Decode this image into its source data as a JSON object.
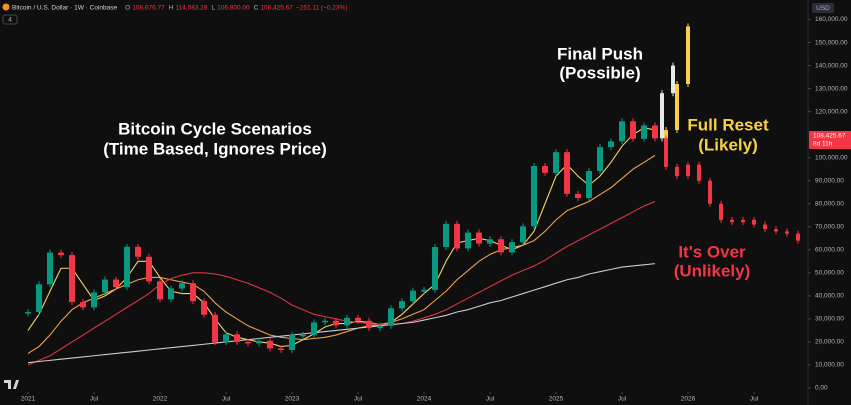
{
  "chart_data": {
    "type": "candlestick",
    "header": {
      "symbol": "Bitcoin / U.S. Dollar · 1W · Coinbase",
      "ohlc": [
        {
          "key": "O",
          "value": "108,676.77"
        },
        {
          "key": "H",
          "value": "114,083.28"
        },
        {
          "key": "L",
          "value": "106,800.00"
        },
        {
          "key": "C",
          "value": "108,425.67"
        }
      ],
      "change": "−251.11 (−0.23%)",
      "indicator_count": "4"
    },
    "currency": "USD",
    "last_price_label": "108,425.67",
    "countdown": "8d 11h",
    "title_annotation": [
      "Bitcoin Cycle Scenarios",
      "(Time Based, Ignores Price)"
    ],
    "x": [
      "2021-01",
      "2021-02",
      "2021-03",
      "2021-04",
      "2021-05",
      "2021-06",
      "2021-07",
      "2021-08",
      "2021-09",
      "2021-10",
      "2021-11",
      "2021-12",
      "2022-01",
      "2022-02",
      "2022-03",
      "2022-04",
      "2022-05",
      "2022-06",
      "2022-07",
      "2022-08",
      "2022-09",
      "2022-10",
      "2022-11",
      "2022-12",
      "2023-01",
      "2023-02",
      "2023-03",
      "2023-04",
      "2023-05",
      "2023-06",
      "2023-07",
      "2023-08",
      "2023-09",
      "2023-10",
      "2023-11",
      "2023-12",
      "2024-01",
      "2024-02",
      "2024-03",
      "2024-04",
      "2024-05",
      "2024-06",
      "2024-07",
      "2024-08",
      "2024-09",
      "2024-10",
      "2024-11",
      "2024-12",
      "2025-01",
      "2025-02",
      "2025-03",
      "2025-04",
      "2025-05",
      "2025-06",
      "2025-07",
      "2025-08",
      "2025-09",
      "2025-10"
    ],
    "series": [
      {
        "color": "#089981",
        "down_color": "#f23645",
        "values": [
          33000,
          45000,
          58800,
          57700,
          37300,
          35000,
          41500,
          47100,
          43800,
          61300,
          57000,
          46300,
          38500,
          43200,
          45500,
          37700,
          31800,
          19900,
          23300,
          20000,
          19400,
          20500,
          17200,
          16500,
          23100,
          23100,
          28500,
          29200,
          27200,
          30500,
          29200,
          26000,
          27000,
          34600,
          37700,
          42300,
          42600,
          61200,
          71300,
          60600,
          67500,
          62700,
          64600,
          58900,
          63300,
          70200,
          96400,
          93400,
          102400,
          84300,
          82500,
          94200,
          104600,
          107100,
          115800,
          108200,
          114000,
          108400
        ]
      }
    ],
    "moving_averages": [
      {
        "color": "#f5d36b",
        "values": [
          25000,
          32000,
          42000,
          52000,
          52000,
          45000,
          38000,
          40000,
          43000,
          48000,
          55000,
          55000,
          48000,
          42000,
          41000,
          41000,
          37000,
          30000,
          24000,
          22000,
          21000,
          20000,
          19500,
          18000,
          18500,
          21000,
          23500,
          26500,
          28000,
          28000,
          29000,
          28500,
          27500,
          28500,
          32000,
          36500,
          41000,
          45000,
          55000,
          63000,
          64000,
          65000,
          64000,
          62000,
          60000,
          62000,
          68000,
          80000,
          92000,
          97000,
          92000,
          88000,
          92000,
          98000,
          105000,
          110000,
          113000,
          112000
        ]
      },
      {
        "color": "#f0a050",
        "values": [
          15000,
          18000,
          23000,
          29000,
          34000,
          37000,
          39000,
          41000,
          43000,
          45000,
          47000,
          48000,
          48000,
          47000,
          46000,
          45000,
          42000,
          37000,
          33000,
          30000,
          27000,
          25000,
          23000,
          22000,
          21500,
          21000,
          21500,
          22000,
          23000,
          24500,
          26000,
          27000,
          27500,
          28500,
          30000,
          32000,
          34000,
          38000,
          42000,
          47000,
          51000,
          55000,
          58000,
          60000,
          61000,
          62000,
          64000,
          68000,
          73000,
          77000,
          79000,
          81000,
          84000,
          87000,
          91000,
          95000,
          98000,
          101000
        ]
      },
      {
        "color": "#d9363e",
        "values": [
          10000,
          12000,
          14000,
          17000,
          20000,
          23000,
          26000,
          29000,
          32000,
          35000,
          38000,
          41000,
          45000,
          47500,
          49000,
          50000,
          50000,
          49500,
          48500,
          47000,
          45500,
          43500,
          41500,
          39000,
          36000,
          34000,
          32000,
          31000,
          30000,
          29000,
          28500,
          28000,
          27500,
          27500,
          28000,
          29000,
          30500,
          32000,
          34000,
          36500,
          39000,
          41500,
          44000,
          46500,
          49000,
          51000,
          53000,
          55500,
          58500,
          61500,
          64000,
          66500,
          69000,
          71500,
          74000,
          76500,
          79000,
          81000
        ]
      },
      {
        "color": "#c8ccd4",
        "values": [
          11000,
          11500,
          12000,
          12500,
          13000,
          13500,
          14000,
          14500,
          15000,
          15500,
          16000,
          16500,
          17000,
          17500,
          18000,
          18500,
          19000,
          19500,
          20000,
          20500,
          21000,
          21500,
          22000,
          22500,
          23000,
          23500,
          24000,
          24500,
          25000,
          25500,
          26000,
          26500,
          27000,
          27500,
          28000,
          28500,
          29500,
          30500,
          31500,
          33000,
          34000,
          35500,
          37000,
          38000,
          39500,
          41000,
          42500,
          44000,
          45500,
          47000,
          48000,
          49500,
          50500,
          51500,
          52500,
          53000,
          53500,
          54000
        ]
      }
    ],
    "scenarios": [
      {
        "label": [
          "Final Push",
          "(Possible)"
        ],
        "color": "#e8e8e8",
        "x": [
          "2025-11",
          "2025-12"
        ],
        "values": [
          128000,
          140000
        ]
      },
      {
        "label": [
          "Full Reset",
          "(Likely)"
        ],
        "color": "#f7d046",
        "x": [
          "2025-11",
          "2025-12",
          "2026-01"
        ],
        "values": [
          112000,
          132000,
          157000
        ]
      },
      {
        "label": [
          "It's Over",
          "(Unlikely)"
        ],
        "color": "#f23645",
        "x": [
          "2025-11",
          "2025-12",
          "2026-01",
          "2026-02",
          "2026-03",
          "2026-04",
          "2026-05",
          "2026-06",
          "2026-07",
          "2026-08",
          "2026-09",
          "2026-10",
          "2026-11"
        ],
        "values": [
          96000,
          92000,
          97000,
          90000,
          80000,
          73000,
          72000,
          73000,
          71000,
          69000,
          68000,
          67000,
          64000
        ]
      }
    ],
    "ylim": [
      0,
      165000
    ],
    "yticks": [
      {
        "value": 0,
        "label": "0.00"
      },
      {
        "value": 10000,
        "label": "10,000.00"
      },
      {
        "value": 20000,
        "label": "20,000.00"
      },
      {
        "value": 30000,
        "label": "30,000.00"
      },
      {
        "value": 40000,
        "label": "40,000.00"
      },
      {
        "value": 50000,
        "label": "50,000.00"
      },
      {
        "value": 60000,
        "label": "60,000.00"
      },
      {
        "value": 70000,
        "label": "70,000.00"
      },
      {
        "value": 80000,
        "label": "80,000.00"
      },
      {
        "value": 90000,
        "label": "90,000.00"
      },
      {
        "value": 100000,
        "label": "100,000.00"
      },
      {
        "value": 120000,
        "label": "120,000.00"
      },
      {
        "value": 130000,
        "label": "130,000.00"
      },
      {
        "value": 140000,
        "label": "140,000.00"
      },
      {
        "value": 150000,
        "label": "150,000.00"
      },
      {
        "value": 160000,
        "label": "160,000.00"
      }
    ],
    "xticks": [
      {
        "value": "2021-01",
        "label": "2021"
      },
      {
        "value": "2021-07",
        "label": "Jul"
      },
      {
        "value": "2022-01",
        "label": "2022"
      },
      {
        "value": "2022-07",
        "label": "Jul"
      },
      {
        "value": "2023-01",
        "label": "2023"
      },
      {
        "value": "2023-07",
        "label": "Jul"
      },
      {
        "value": "2024-01",
        "label": "2024"
      },
      {
        "value": "2024-07",
        "label": "Jul"
      },
      {
        "value": "2025-01",
        "label": "2025"
      },
      {
        "value": "2025-07",
        "label": "Jul"
      },
      {
        "value": "2026-01",
        "label": "2026"
      },
      {
        "value": "2026-07",
        "label": "Jul"
      }
    ],
    "grid": false
  }
}
